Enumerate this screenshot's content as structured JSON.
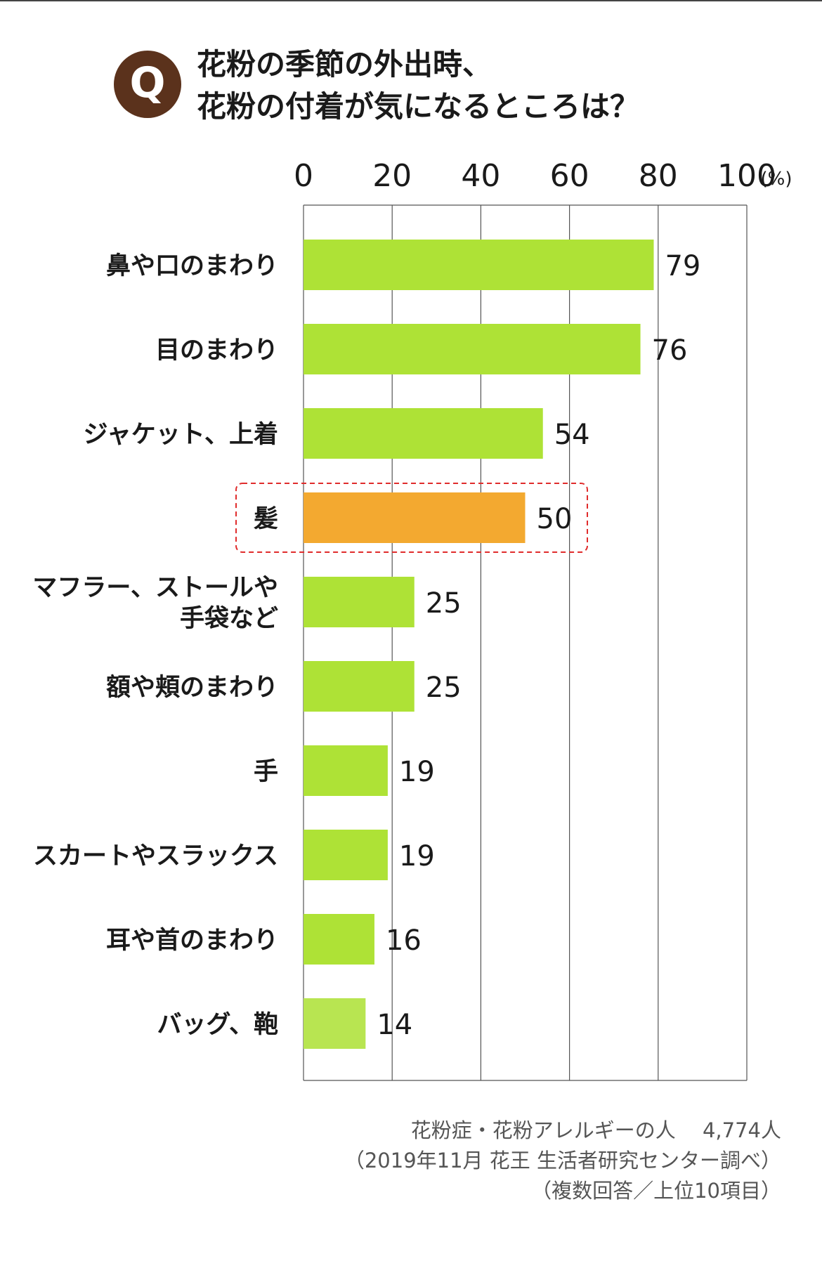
{
  "header": {
    "badge": "Q",
    "title_lines": [
      "花粉の季節の外出時、",
      "花粉の付着が気になるところは？"
    ]
  },
  "chart_data": {
    "type": "bar",
    "orientation": "horizontal",
    "x_unit": "(%)",
    "xlim": [
      0,
      100
    ],
    "x_ticks": [
      0,
      20,
      40,
      60,
      80,
      100
    ],
    "grid": true,
    "categories": [
      [
        "鼻や口のまわり"
      ],
      [
        "目のまわり"
      ],
      [
        "ジャケット、上着"
      ],
      [
        "髪"
      ],
      [
        "マフラー、ストールや",
        "手袋など"
      ],
      [
        "額や頬のまわり"
      ],
      [
        "手"
      ],
      [
        "スカートやスラックス"
      ],
      [
        "耳や首のまわり"
      ],
      [
        "バッグ、鞄"
      ]
    ],
    "values": [
      79,
      76,
      54,
      50,
      25,
      25,
      19,
      19,
      16,
      14
    ],
    "highlight_index": 3,
    "colors": {
      "bar": "#aee236",
      "bar_last": "#b8e551",
      "highlight_bar": "#f3a930",
      "highlight_box": "#e02c2c",
      "grid": "#555555"
    }
  },
  "footer": {
    "source_lines": [
      "花粉症・花粉アレルギーの人　 4,774人",
      "（2019年11月 花王 生活者研究センター調べ）",
      "（複数回答／上位10項目）"
    ]
  }
}
